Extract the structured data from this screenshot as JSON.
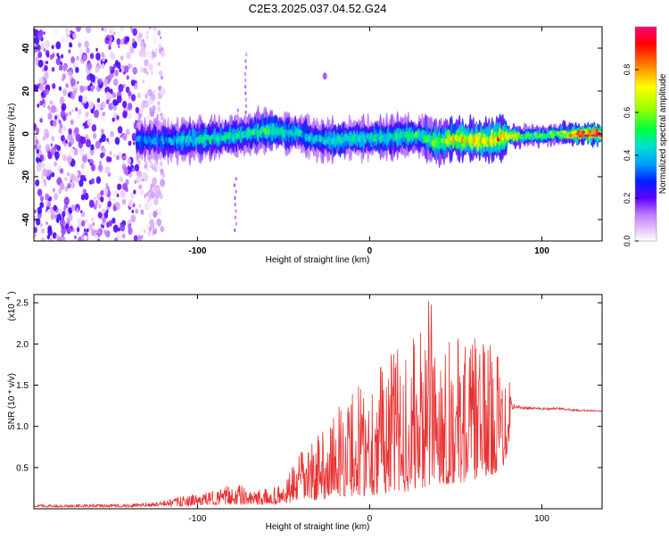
{
  "figure": {
    "title": "C2E3.2025.037.04.52.G24"
  },
  "chart_data": [
    {
      "type": "heatmap",
      "name": "spectrogram",
      "xlabel": "Height of straight line (km)",
      "ylabel": "Frequency (Hz)",
      "xlim": [
        -195,
        135
      ],
      "ylim": [
        -50,
        50
      ],
      "xticks": [
        -100,
        0,
        100
      ],
      "xtick_labels": [
        "-100",
        "0",
        "100"
      ],
      "yticks": [
        -40,
        -20,
        0,
        20,
        40
      ],
      "ytick_labels": [
        "-40",
        "-20",
        "0",
        "20",
        "40"
      ],
      "grid": false,
      "colorbar": {
        "label": "Normalized spectral amplitude",
        "range": [
          0.0,
          1.0
        ],
        "ticks": [
          0.0,
          0.2,
          0.4,
          0.6,
          0.8
        ],
        "tick_labels": [
          "0.0",
          "0.2",
          "0.4",
          "0.6",
          "0.8"
        ],
        "colormap": "rainbow"
      },
      "ridge": {
        "description_x": [
          -135,
          -110,
          -90,
          -70,
          -60,
          -50,
          -40,
          -30,
          -20,
          -10,
          0,
          10,
          20,
          30,
          35,
          40,
          50,
          60,
          70,
          80,
          90,
          100,
          110,
          120,
          135
        ],
        "frequency": [
          -3,
          -3,
          -2,
          0,
          2,
          1,
          0,
          -3,
          -3,
          -2,
          -2,
          -2,
          -1,
          -1,
          -3,
          -4,
          -2,
          -3,
          -3,
          -1,
          -1,
          -1,
          0,
          0,
          0
        ],
        "amplitude": [
          0.35,
          0.4,
          0.45,
          0.45,
          0.5,
          0.45,
          0.4,
          0.4,
          0.45,
          0.45,
          0.45,
          0.45,
          0.45,
          0.5,
          0.55,
          0.6,
          0.7,
          0.75,
          0.75,
          0.8,
          0.5,
          0.5,
          0.55,
          0.9,
          0.95
        ]
      }
    },
    {
      "type": "line",
      "name": "snr",
      "xlabel": "Height of straight line (km)",
      "ylabel": "SNR (10 * v/v)",
      "scale_label": "(x10",
      "scale_exponent": "4",
      "scale_close": ")",
      "xlim": [
        -195,
        135
      ],
      "ylim": [
        0,
        2.6
      ],
      "xticks": [
        -100,
        0,
        100
      ],
      "xtick_labels": [
        "-100",
        "0",
        "100"
      ],
      "yticks": [
        0.5,
        1.0,
        1.5,
        2.0,
        2.5
      ],
      "ytick_labels": [
        "0.5",
        "1.0",
        "1.5",
        "2.0",
        "2.5"
      ],
      "grid": false,
      "color": "#e83232",
      "envelope": {
        "x": [
          -195,
          -140,
          -125,
          -110,
          -95,
          -85,
          -78,
          -70,
          -60,
          -50,
          -45,
          -40,
          -30,
          -20,
          -10,
          0,
          10,
          20,
          30,
          35,
          40,
          50,
          60,
          70,
          78,
          82,
          84,
          90,
          100,
          110,
          120,
          135
        ],
        "y_max": [
          0.05,
          0.06,
          0.08,
          0.15,
          0.2,
          0.25,
          0.35,
          0.2,
          0.25,
          0.3,
          0.5,
          0.7,
          0.9,
          1.2,
          1.5,
          1.65,
          1.9,
          2.0,
          2.15,
          2.6,
          2.2,
          2.1,
          2.1,
          2.0,
          1.9,
          1.7,
          1.3,
          1.27,
          1.25,
          1.25,
          1.22,
          1.2
        ],
        "y_min": [
          0.02,
          0.02,
          0.03,
          0.03,
          0.05,
          0.05,
          0.05,
          0.05,
          0.05,
          0.05,
          0.08,
          0.1,
          0.1,
          0.15,
          0.15,
          0.15,
          0.2,
          0.2,
          0.25,
          0.25,
          0.3,
          0.3,
          0.35,
          0.4,
          0.5,
          0.9,
          1.18,
          1.18,
          1.18,
          1.18,
          1.17,
          1.17
        ]
      }
    }
  ]
}
